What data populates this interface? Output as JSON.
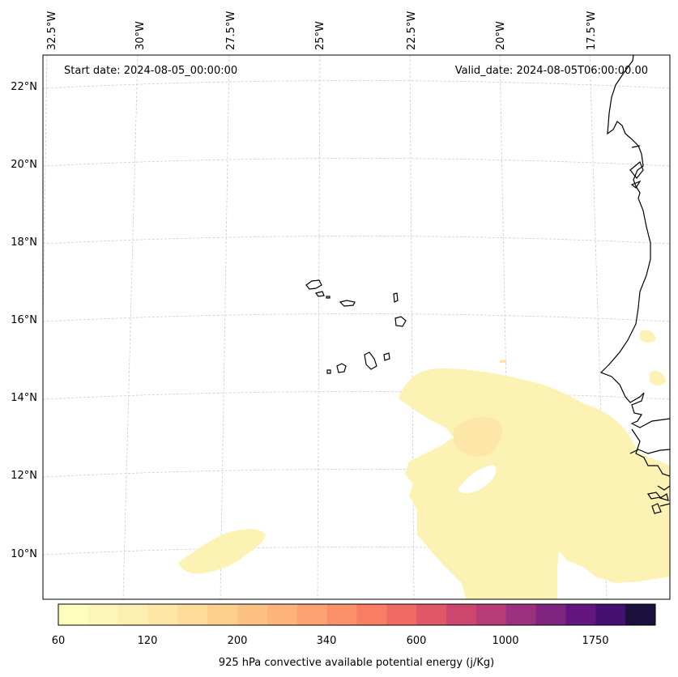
{
  "map": {
    "start_date": "Start date: 2024-08-05_00:00:00",
    "valid_date": "Valid_date: 2024-08-05T06:00:00.00",
    "lon_labels": [
      "32.5°W",
      "30°W",
      "27.5°W",
      "25°W",
      "22.5°W",
      "20°W",
      "17.5°W"
    ],
    "lat_labels": [
      "22°N",
      "20°N",
      "18°N",
      "16°N",
      "14°N",
      "12°N",
      "10°N"
    ],
    "coastline_color": "#000000",
    "gridline_color": "#cccccc"
  },
  "colorbar": {
    "label": "925 hPa convective available potential energy (j/Kg)",
    "tick_labels": [
      "60",
      "120",
      "200",
      "340",
      "600",
      "1000",
      "1750"
    ],
    "colors": [
      "#fefdbd",
      "#fcf6b9",
      "#fcefb1",
      "#fde6a6",
      "#fddc9a",
      "#fdcf8d",
      "#fdc283",
      "#fdb37a",
      "#fda271",
      "#fc9068",
      "#f87d62",
      "#ef6a62",
      "#e05767",
      "#cc476e",
      "#b53c77",
      "#9a317e",
      "#7f2580",
      "#63177e",
      "#441172",
      "#1c103c"
    ]
  }
}
